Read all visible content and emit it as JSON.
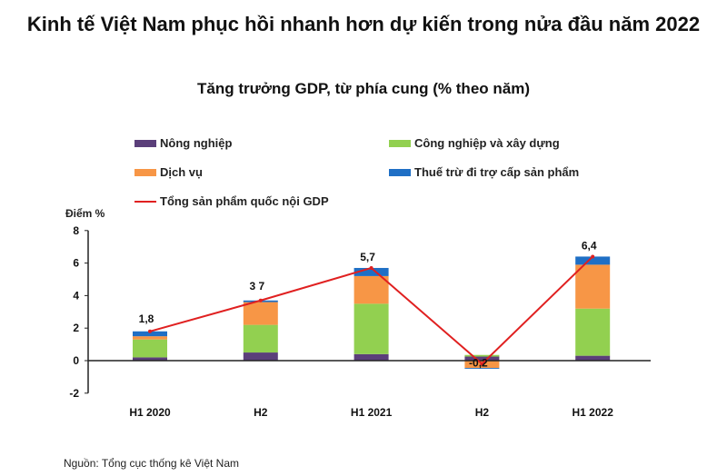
{
  "chart_data": {
    "type": "bar",
    "title": "Kinh tế Việt Nam phục hồi nhanh hơn dự kiến trong nửa đầu năm 2022",
    "subtitle": "Tăng trưởng GDP, từ phía cung (% theo năm)",
    "ylabel": "Điểm %",
    "ylim": [
      -2,
      8
    ],
    "yticks": [
      "-2",
      "0",
      "2",
      "4",
      "6",
      "8"
    ],
    "categories": [
      "H1 2020",
      "H2",
      "H1 2021",
      "H2",
      "H1 2022"
    ],
    "series": [
      {
        "name": "Nông nghiệp",
        "color": "#5b3f7a",
        "values": [
          0.2,
          0.5,
          0.4,
          0.25,
          0.3
        ]
      },
      {
        "name": "Công nghiệp và xây dựng",
        "color": "#92d050",
        "values": [
          1.1,
          1.7,
          3.1,
          0.1,
          2.9
        ]
      },
      {
        "name": "Dịch vụ",
        "color": "#f79646",
        "values": [
          0.2,
          1.4,
          1.7,
          -0.45,
          2.7
        ]
      },
      {
        "name": "Thuế trừ đi trợ cấp sản phẩm",
        "color": "#1f6fc5",
        "values": [
          0.3,
          0.1,
          0.5,
          -0.05,
          0.5
        ]
      }
    ],
    "line": {
      "name": "Tổng sản phẩm quốc nội GDP",
      "color": "#e02020",
      "values": [
        1.8,
        3.7,
        5.7,
        -0.2,
        6.4
      ],
      "labels": [
        "1,8",
        "3 7",
        "5,7",
        "-0,2",
        "6,4"
      ]
    },
    "source": "Nguồn: Tổng cục thống kê Việt Nam"
  }
}
